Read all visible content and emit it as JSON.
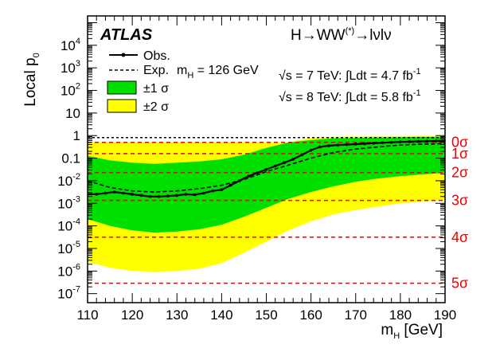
{
  "chart_data": {
    "type": "line",
    "title": "",
    "xlabel": "m",
    "xlabel_sub": "H",
    "xlabel_unit": " [GeV]",
    "ylabel": "Local p",
    "ylabel_sub": "0",
    "xlim": [
      110,
      190
    ],
    "ylim_log10": [
      -7.4,
      5.3
    ],
    "yscale": "log",
    "x_ticks": [
      110,
      120,
      130,
      140,
      150,
      160,
      170,
      180,
      190
    ],
    "y_tick_labels": [
      {
        "base": "10",
        "exp": "4",
        "log": 4
      },
      {
        "base": "10",
        "exp": "3",
        "log": 3
      },
      {
        "base": "10",
        "exp": "2",
        "log": 2
      },
      {
        "base": "10",
        "exp": "",
        "log": 1
      },
      {
        "base": "1",
        "exp": "",
        "log": 0
      },
      {
        "base": "0.1",
        "exp": "",
        "log": -1
      },
      {
        "base": "10",
        "exp": "-2",
        "log": -2
      },
      {
        "base": "10",
        "exp": "-3",
        "log": -3
      },
      {
        "base": "10",
        "exp": "-4",
        "log": -4
      },
      {
        "base": "10",
        "exp": "-5",
        "log": -5
      },
      {
        "base": "10",
        "exp": "-6",
        "log": -6
      },
      {
        "base": "10",
        "exp": "-7",
        "log": -7
      }
    ],
    "sigma_lines": [
      {
        "label": "0σ",
        "log_p": -0.3
      },
      {
        "label": "1σ",
        "log_p": -0.8
      },
      {
        "label": "2σ",
        "log_p": -1.64
      },
      {
        "label": "3σ",
        "log_p": -2.87
      },
      {
        "label": "4σ",
        "log_p": -4.5
      },
      {
        "label": "5σ",
        "log_p": -6.54
      }
    ],
    "expected_line_value": 0.5,
    "observed": {
      "x": [
        110,
        112,
        114,
        116,
        118,
        120,
        122,
        124,
        126,
        128,
        130,
        132,
        134,
        136,
        138,
        140,
        142,
        144,
        146,
        148,
        150,
        152,
        154,
        156,
        158,
        160,
        162,
        164,
        166,
        168,
        170,
        172,
        174,
        176,
        178,
        180,
        182,
        184,
        186,
        188,
        190
      ],
      "log_p": [
        -2.6,
        -2.6,
        -2.55,
        -2.5,
        -2.55,
        -2.6,
        -2.65,
        -2.7,
        -2.7,
        -2.68,
        -2.65,
        -2.6,
        -2.62,
        -2.55,
        -2.45,
        -2.4,
        -2.2,
        -2.0,
        -1.8,
        -1.65,
        -1.5,
        -1.35,
        -1.2,
        -1.05,
        -0.85,
        -0.65,
        -0.5,
        -0.45,
        -0.42,
        -0.4,
        -0.38,
        -0.36,
        -0.34,
        -0.32,
        -0.3,
        -0.28,
        -0.27,
        -0.26,
        -0.25,
        -0.24,
        -0.23
      ]
    },
    "expected": {
      "x": [
        110,
        115,
        120,
        125,
        130,
        135,
        140,
        145,
        150,
        155,
        160,
        165,
        170,
        175,
        180,
        185,
        190
      ],
      "log_p": [
        -2.0,
        -2.3,
        -2.45,
        -2.5,
        -2.45,
        -2.35,
        -2.2,
        -1.95,
        -1.6,
        -1.3,
        -1.0,
        -0.75,
        -0.6,
        -0.5,
        -0.42,
        -0.38,
        -0.36
      ]
    },
    "band_1sigma": {
      "x": [
        110,
        115,
        120,
        125,
        130,
        135,
        140,
        145,
        150,
        155,
        160,
        165,
        170,
        175,
        180,
        185,
        190
      ],
      "upper_log": [
        -0.9,
        -1.1,
        -1.2,
        -1.25,
        -1.2,
        -1.15,
        -1.05,
        -0.85,
        -0.55,
        -0.3,
        -0.2,
        -0.12,
        -0.1,
        -0.08,
        -0.07,
        -0.06,
        -0.05
      ],
      "lower_log": [
        -3.7,
        -4.0,
        -4.2,
        -4.3,
        -4.25,
        -4.15,
        -3.95,
        -3.6,
        -3.2,
        -2.8,
        -2.5,
        -2.25,
        -2.05,
        -1.9,
        -1.8,
        -1.72,
        -1.65
      ]
    },
    "band_2sigma": {
      "x": [
        110,
        115,
        120,
        125,
        130,
        135,
        140,
        145,
        150,
        155,
        160,
        165,
        170,
        175,
        180,
        185,
        190
      ],
      "upper_log": [
        -0.3,
        -0.3,
        -0.3,
        -0.3,
        -0.3,
        -0.3,
        -0.3,
        -0.3,
        -0.3,
        -0.3,
        -0.1,
        -0.05,
        -0.04,
        -0.03,
        -0.03,
        -0.02,
        -0.02
      ],
      "lower_log": [
        -5.6,
        -5.85,
        -6.0,
        -6.05,
        -6.0,
        -5.9,
        -5.65,
        -5.2,
        -4.7,
        -4.2,
        -3.8,
        -3.5,
        -3.3,
        -3.15,
        -3.0,
        -2.92,
        -2.85
      ]
    },
    "legend": {
      "obs": "Obs.",
      "exp": "Exp.",
      "band1": "±1 σ",
      "band2": "±2 σ"
    },
    "colors": {
      "band1": "#00e000",
      "band2": "#ffff00",
      "sigma": "#ee0000",
      "line": "#000000"
    }
  },
  "annotations": {
    "atlas": "ATLAS",
    "process": "H→WW",
    "process_sup": "(*)",
    "process_tail": "→lνlν",
    "mass_prefix": "m",
    "mass_sub": "H",
    "mass_value": " = 126 GeV",
    "lumi7": "√s = 7 TeV:  ∫Ldt = 4.7 fb",
    "lumi8": "√s = 8 TeV:  ∫Ldt = 5.8 fb",
    "lumi_sup": "-1"
  }
}
